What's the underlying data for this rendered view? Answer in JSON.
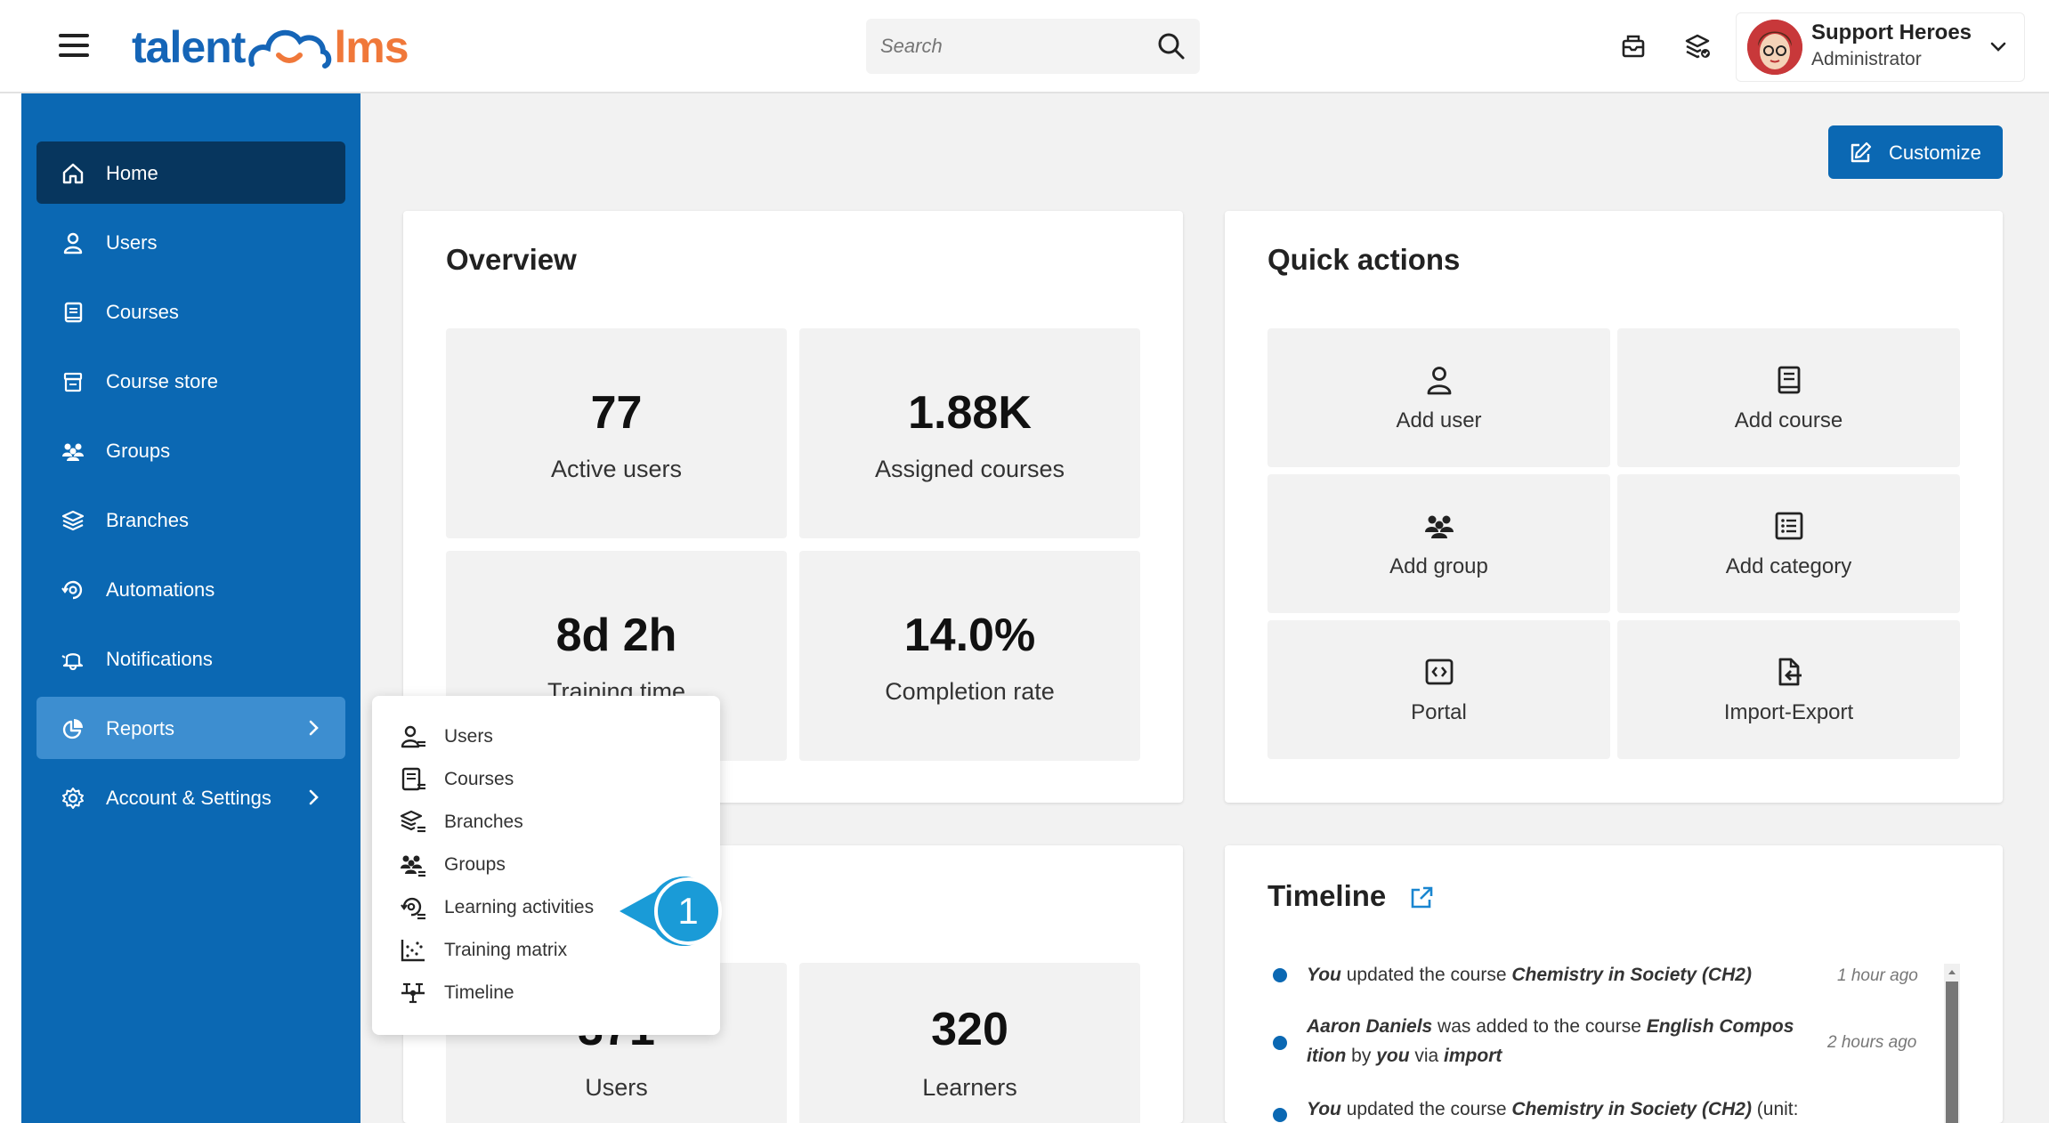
{
  "header": {
    "logo_left": "talent",
    "logo_right": "lms",
    "search_placeholder": "Search",
    "user_name": "Support Heroes",
    "user_role": "Administrator"
  },
  "sidebar": {
    "items": [
      {
        "label": "Home",
        "icon": "home-icon"
      },
      {
        "label": "Users",
        "icon": "user-icon"
      },
      {
        "label": "Courses",
        "icon": "book-icon"
      },
      {
        "label": "Course store",
        "icon": "store-icon"
      },
      {
        "label": "Groups",
        "icon": "group-icon"
      },
      {
        "label": "Branches",
        "icon": "layers-icon"
      },
      {
        "label": "Automations",
        "icon": "automation-icon"
      },
      {
        "label": "Notifications",
        "icon": "bell-icon"
      },
      {
        "label": "Reports",
        "icon": "pie-chart-icon"
      },
      {
        "label": "Account & Settings",
        "icon": "gear-icon"
      }
    ]
  },
  "main": {
    "customize_label": "Customize",
    "overview": {
      "title": "Overview",
      "stats": [
        {
          "value": "77",
          "label": "Active users"
        },
        {
          "value": "1.88K",
          "label": "Assigned courses"
        },
        {
          "value": "8d 2h",
          "label": "Training time"
        },
        {
          "value": "14.0%",
          "label": "Completion rate"
        }
      ]
    },
    "quick_actions": {
      "title": "Quick actions",
      "items": [
        {
          "label": "Add user",
          "icon": "user-icon"
        },
        {
          "label": "Add course",
          "icon": "book-icon"
        },
        {
          "label": "Add group",
          "icon": "group-icon"
        },
        {
          "label": "Add category",
          "icon": "list-icon"
        },
        {
          "label": "Portal",
          "icon": "code-icon"
        },
        {
          "label": "Import-Export",
          "icon": "import-export-icon"
        }
      ]
    },
    "bottom_stats": [
      {
        "value": "371",
        "label": "Users"
      },
      {
        "value": "320",
        "label": "Learners"
      }
    ],
    "timeline": {
      "title": "Timeline",
      "entries": [
        {
          "actor": "You",
          "text1": " updated the course ",
          "target": "Chemistry in Society (CH2)",
          "time": "1 hour ago"
        },
        {
          "actor": "Aaron Daniels",
          "text1": " was added to the course ",
          "target": "English Compos",
          "target2": "ition",
          "text2": " by ",
          "actor2": "you",
          "text3": " via ",
          "via": "import",
          "time": "2 hours ago"
        },
        {
          "actor": "You",
          "text1": " updated the course ",
          "target": "Chemistry in Society (CH2)",
          "text2": " (unit:"
        }
      ]
    }
  },
  "reports_menu": {
    "items": [
      {
        "label": "Users",
        "icon": "user-report-icon"
      },
      {
        "label": "Courses",
        "icon": "course-report-icon"
      },
      {
        "label": "Branches",
        "icon": "branch-report-icon"
      },
      {
        "label": "Groups",
        "icon": "group-report-icon"
      },
      {
        "label": "Learning activities",
        "icon": "learning-activities-icon"
      },
      {
        "label": "Training matrix",
        "icon": "matrix-icon"
      },
      {
        "label": "Timeline",
        "icon": "timeline-icon"
      }
    ]
  },
  "callout": {
    "number": "1",
    "color": "#1a9bd7"
  },
  "colors": {
    "brand_blue": "#0b68b3",
    "brand_orange": "#f0783a",
    "active_nav": "#07365e",
    "hover_nav": "#3d8ed0"
  }
}
